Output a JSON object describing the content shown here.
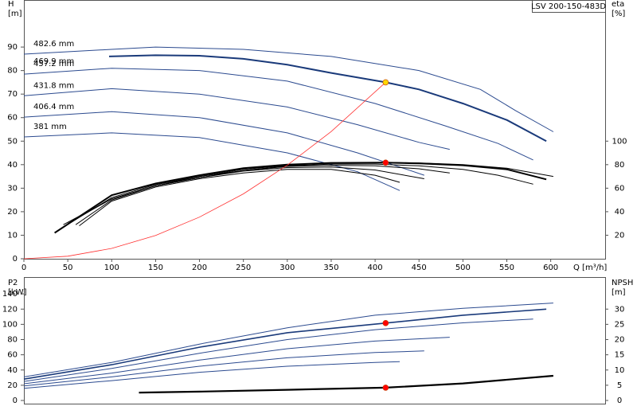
{
  "chart_data": [
    {
      "type": "line",
      "title": "LSV 200-150-483D",
      "ylabel": [
        "H",
        "[m]"
      ],
      "y2label": [
        "eta",
        "[%]"
      ],
      "xlabel": "Q [m³/h]",
      "xlim": [
        0,
        662
      ],
      "xticks": [
        0,
        50,
        100,
        150,
        200,
        250,
        300,
        350,
        400,
        450,
        500,
        550,
        600
      ],
      "ylim": [
        0,
        110
      ],
      "yticks": [
        0,
        10,
        20,
        30,
        40,
        50,
        60,
        70,
        80,
        90
      ],
      "y2lim": [
        0,
        220
      ],
      "y2ticks": [
        20,
        40,
        60,
        80,
        100
      ],
      "series": [
        {
          "name": "482.6 mm",
          "color": "#2b4a8f",
          "line_width": 1,
          "x": [
            0,
            100,
            150,
            250,
            350,
            450,
            520,
            560,
            603
          ],
          "values": [
            87,
            89,
            90,
            89,
            86,
            80,
            72,
            63,
            54
          ]
        },
        {
          "name": "469.9 mm",
          "color": "#1a3a7a",
          "line_width": 2,
          "x": [
            97,
            150,
            200,
            250,
            300,
            350,
            412,
            450,
            500,
            550,
            595
          ],
          "values": [
            86,
            86.5,
            86.3,
            85,
            82.5,
            79,
            75,
            72,
            66,
            59,
            50
          ]
        },
        {
          "name": "457.2 mm",
          "color": "#2b4a8f",
          "line_width": 1,
          "x": [
            0,
            100,
            200,
            300,
            400,
            480,
            540,
            580
          ],
          "values": [
            78.5,
            81,
            80,
            75.5,
            66,
            56.5,
            49,
            42
          ]
        },
        {
          "name": "431.8 mm",
          "color": "#2b4a8f",
          "line_width": 1,
          "x": [
            0,
            100,
            200,
            300,
            380,
            450,
            485
          ],
          "values": [
            69.3,
            72.3,
            70,
            64.5,
            57,
            49.5,
            46.5
          ]
        },
        {
          "name": "406.4 mm",
          "color": "#2b4a8f",
          "line_width": 1,
          "x": [
            0,
            100,
            200,
            300,
            380,
            456
          ],
          "values": [
            60.2,
            62.5,
            60,
            53.5,
            45,
            35.5
          ]
        },
        {
          "name": "381 mm",
          "color": "#2b4a8f",
          "line_width": 1,
          "x": [
            0,
            100,
            200,
            300,
            380,
            428
          ],
          "values": [
            51.8,
            53.5,
            51.5,
            45,
            37,
            29
          ]
        },
        {
          "color": "#000000",
          "line_width": 1,
          "axis": "y2",
          "x": [
            50,
            100,
            150,
            200,
            250,
            300,
            350,
            412,
            450,
            500,
            550,
            603
          ],
          "values": [
            30,
            51,
            62,
            70,
            76,
            79.5,
            81.5,
            82,
            81.5,
            80,
            77,
            70
          ]
        },
        {
          "color": "#000000",
          "line_width": 2,
          "axis": "y2",
          "x": [
            35,
            100,
            150,
            200,
            250,
            300,
            350,
            412,
            450,
            500,
            550,
            595
          ],
          "values": [
            22,
            54,
            64,
            71,
            77,
            80,
            81.5,
            81.7,
            81,
            79.5,
            76,
            67.5
          ]
        },
        {
          "color": "#000000",
          "line_width": 1,
          "axis": "y2",
          "x": [
            45,
            100,
            150,
            200,
            250,
            300,
            350,
            400,
            450,
            500,
            540,
            580
          ],
          "values": [
            29,
            51,
            62,
            69,
            75,
            79,
            80.5,
            80.5,
            79,
            76,
            71,
            63.4
          ]
        },
        {
          "color": "#000000",
          "line_width": 1,
          "axis": "y2",
          "x": [
            54,
            100,
            150,
            200,
            250,
            300,
            350,
            400,
            450,
            485
          ],
          "values": [
            31,
            52,
            63,
            70,
            75,
            78.5,
            79.5,
            79,
            76.5,
            73
          ]
        },
        {
          "color": "#000000",
          "line_width": 1,
          "axis": "y2",
          "x": [
            59,
            100,
            150,
            200,
            250,
            300,
            350,
            400,
            456
          ],
          "values": [
            29,
            50,
            62,
            69,
            74.5,
            77.5,
            78,
            75.5,
            68
          ]
        },
        {
          "color": "#000000",
          "line_width": 1,
          "axis": "y2",
          "x": [
            63,
            100,
            150,
            200,
            250,
            300,
            350,
            400,
            428
          ],
          "values": [
            28,
            49,
            61,
            68,
            73,
            76,
            76,
            71,
            65
          ]
        },
        {
          "color": "#ff3030",
          "line_width": 0.8,
          "x": [
            0,
            50,
            100,
            150,
            200,
            250,
            300,
            350,
            412
          ],
          "values": [
            0,
            1.1,
            4.4,
            9.9,
            17.7,
            27.6,
            39.8,
            54.1,
            75
          ]
        }
      ],
      "points": [
        {
          "x": 412,
          "y": 75,
          "color": "#ffd700"
        },
        {
          "x": 412,
          "y": 81.7,
          "color": "#ff0000",
          "axis": "y2"
        }
      ]
    },
    {
      "type": "line",
      "ylabel": [
        "P2",
        "[kW]"
      ],
      "y2label": [
        "NPSH",
        "[m]"
      ],
      "xlim": [
        0,
        662
      ],
      "ylim": [
        0,
        160
      ],
      "yticks": [
        0,
        20,
        40,
        60,
        80,
        100,
        120,
        140
      ],
      "y2lim": [
        0,
        40
      ],
      "y2ticks": [
        0,
        5,
        10,
        15,
        20,
        25,
        30
      ],
      "series": [
        {
          "color": "#2b4a8f",
          "line_width": 1,
          "x": [
            0,
            100,
            200,
            300,
            400,
            500,
            603
          ],
          "values": [
            31,
            50,
            74,
            95.5,
            112,
            121,
            128
          ]
        },
        {
          "color": "#1a3a7a",
          "line_width": 1.6,
          "x": [
            0,
            100,
            200,
            300,
            412,
            500,
            595
          ],
          "values": [
            28,
            47,
            70,
            89,
            101.6,
            112,
            120
          ]
        },
        {
          "color": "#2b4a8f",
          "line_width": 1,
          "x": [
            0,
            100,
            200,
            300,
            400,
            500,
            580
          ],
          "values": [
            25,
            42,
            62,
            80,
            93,
            102,
            107
          ]
        },
        {
          "color": "#2b4a8f",
          "line_width": 1,
          "x": [
            0,
            100,
            200,
            300,
            400,
            485
          ],
          "values": [
            22,
            36,
            53,
            68,
            78,
            83
          ]
        },
        {
          "color": "#2b4a8f",
          "line_width": 1,
          "x": [
            0,
            100,
            200,
            300,
            400,
            456
          ],
          "values": [
            19,
            31,
            45,
            56,
            63,
            65
          ]
        },
        {
          "color": "#2b4a8f",
          "line_width": 1,
          "x": [
            0,
            100,
            200,
            300,
            400,
            428
          ],
          "values": [
            16,
            26,
            37,
            45,
            50,
            51
          ]
        },
        {
          "color": "#000000",
          "line_width": 2.2,
          "axis": "y2",
          "x": [
            131,
            200,
            300,
            412,
            500,
            603
          ],
          "values": [
            2.6,
            2.9,
            3.5,
            4.2,
            5.6,
            8.1
          ]
        }
      ],
      "points": [
        {
          "x": 412,
          "y": 101.6,
          "color": "#ff0000"
        },
        {
          "x": 412,
          "y": 4.2,
          "color": "#ff0000",
          "axis": "y2"
        }
      ]
    }
  ]
}
